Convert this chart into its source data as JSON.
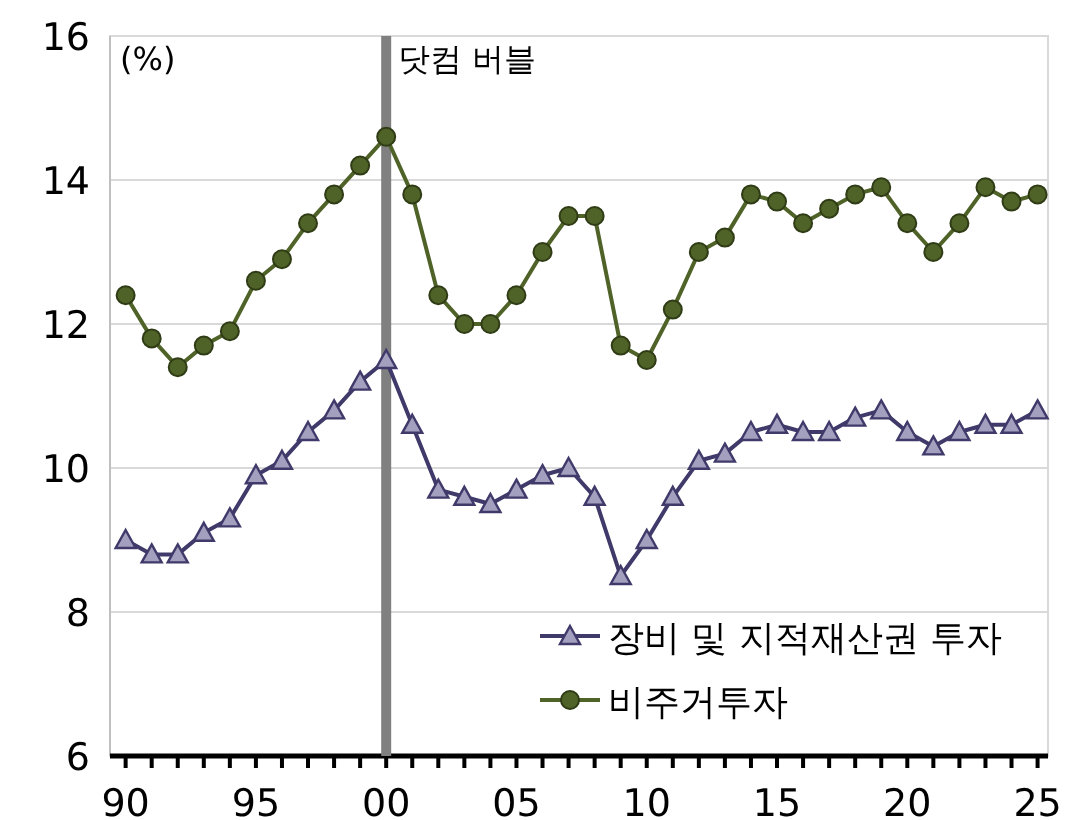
{
  "chart_data": {
    "type": "line",
    "ylabel": "(%)",
    "x": [
      1990,
      1991,
      1992,
      1993,
      1994,
      1995,
      1996,
      1997,
      1998,
      1999,
      2000,
      2001,
      2002,
      2003,
      2004,
      2005,
      2006,
      2007,
      2008,
      2009,
      2010,
      2011,
      2012,
      2013,
      2014,
      2015,
      2016,
      2017,
      2018,
      2019,
      2020,
      2021,
      2022,
      2023,
      2024,
      2025
    ],
    "series": [
      {
        "name": "장비 및 지적재산권 투자",
        "color": "#403a6a",
        "marker": "triangle",
        "values": [
          9.0,
          8.8,
          8.8,
          9.1,
          9.3,
          9.9,
          10.1,
          10.5,
          10.8,
          11.2,
          11.5,
          10.6,
          9.7,
          9.6,
          9.5,
          9.7,
          9.9,
          10.0,
          9.6,
          8.5,
          9.0,
          9.6,
          10.1,
          10.2,
          10.5,
          10.6,
          10.5,
          10.5,
          10.7,
          10.8,
          10.5,
          10.3,
          10.5,
          10.6,
          10.6,
          10.8
        ]
      },
      {
        "name": "비주거투자",
        "color": "#4f6228",
        "marker": "circle",
        "values": [
          12.4,
          11.8,
          11.4,
          11.7,
          11.9,
          12.6,
          12.9,
          13.4,
          13.8,
          14.2,
          14.6,
          13.8,
          12.4,
          12.0,
          12.0,
          12.4,
          13.0,
          13.5,
          13.5,
          11.7,
          11.5,
          12.2,
          13.0,
          13.2,
          13.8,
          13.7,
          13.4,
          13.6,
          13.8,
          13.9,
          13.4,
          13.0,
          13.4,
          13.9,
          13.7,
          13.8
        ]
      }
    ],
    "xlim": [
      1989.4,
      2025.4
    ],
    "xticks": [
      {
        "value": 1990,
        "label": "90"
      },
      {
        "value": 1991,
        "label": null
      },
      {
        "value": 1992,
        "label": null
      },
      {
        "value": 1993,
        "label": null
      },
      {
        "value": 1994,
        "label": null
      },
      {
        "value": 1995,
        "label": "95"
      },
      {
        "value": 1996,
        "label": null
      },
      {
        "value": 1997,
        "label": null
      },
      {
        "value": 1998,
        "label": null
      },
      {
        "value": 1999,
        "label": null
      },
      {
        "value": 2000,
        "label": "00"
      },
      {
        "value": 2001,
        "label": null
      },
      {
        "value": 2002,
        "label": null
      },
      {
        "value": 2003,
        "label": null
      },
      {
        "value": 2004,
        "label": null
      },
      {
        "value": 2005,
        "label": "05"
      },
      {
        "value": 2006,
        "label": null
      },
      {
        "value": 2007,
        "label": null
      },
      {
        "value": 2008,
        "label": null
      },
      {
        "value": 2009,
        "label": null
      },
      {
        "value": 2010,
        "label": "10"
      },
      {
        "value": 2011,
        "label": null
      },
      {
        "value": 2012,
        "label": null
      },
      {
        "value": 2013,
        "label": null
      },
      {
        "value": 2014,
        "label": null
      },
      {
        "value": 2015,
        "label": "15"
      },
      {
        "value": 2016,
        "label": null
      },
      {
        "value": 2017,
        "label": null
      },
      {
        "value": 2018,
        "label": null
      },
      {
        "value": 2019,
        "label": null
      },
      {
        "value": 2020,
        "label": "20"
      },
      {
        "value": 2021,
        "label": null
      },
      {
        "value": 2022,
        "label": null
      },
      {
        "value": 2023,
        "label": null
      },
      {
        "value": 2024,
        "label": null
      },
      {
        "value": 2025,
        "label": "25"
      }
    ],
    "ylim": [
      6,
      16
    ],
    "yticks": [
      6,
      8,
      10,
      12,
      14,
      16
    ],
    "ref_lines": [
      {
        "axis": "x",
        "value": 2000,
        "label": "닷컴 버블",
        "color": "#808080"
      }
    ],
    "grid": "y",
    "legend": "bottom right"
  }
}
